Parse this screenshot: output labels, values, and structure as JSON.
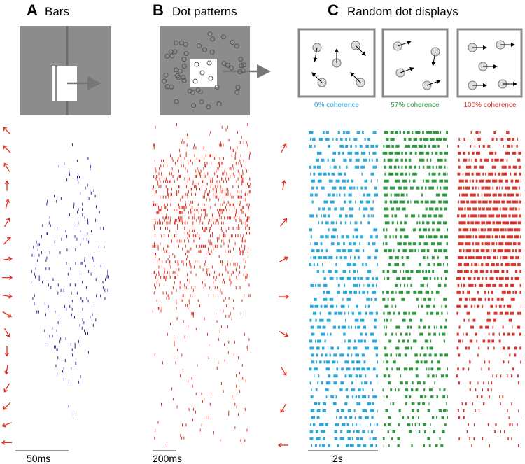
{
  "panels": [
    {
      "letter": "A",
      "title": "Bars",
      "scale_label": "50ms"
    },
    {
      "letter": "B",
      "title": "Dot patterns",
      "scale_label": "200ms"
    },
    {
      "letter": "C",
      "title": "Random dot displays",
      "scale_label": "2s",
      "conditions": [
        "0% coherence",
        "57% coherence",
        "100% coherence"
      ]
    }
  ]
}
